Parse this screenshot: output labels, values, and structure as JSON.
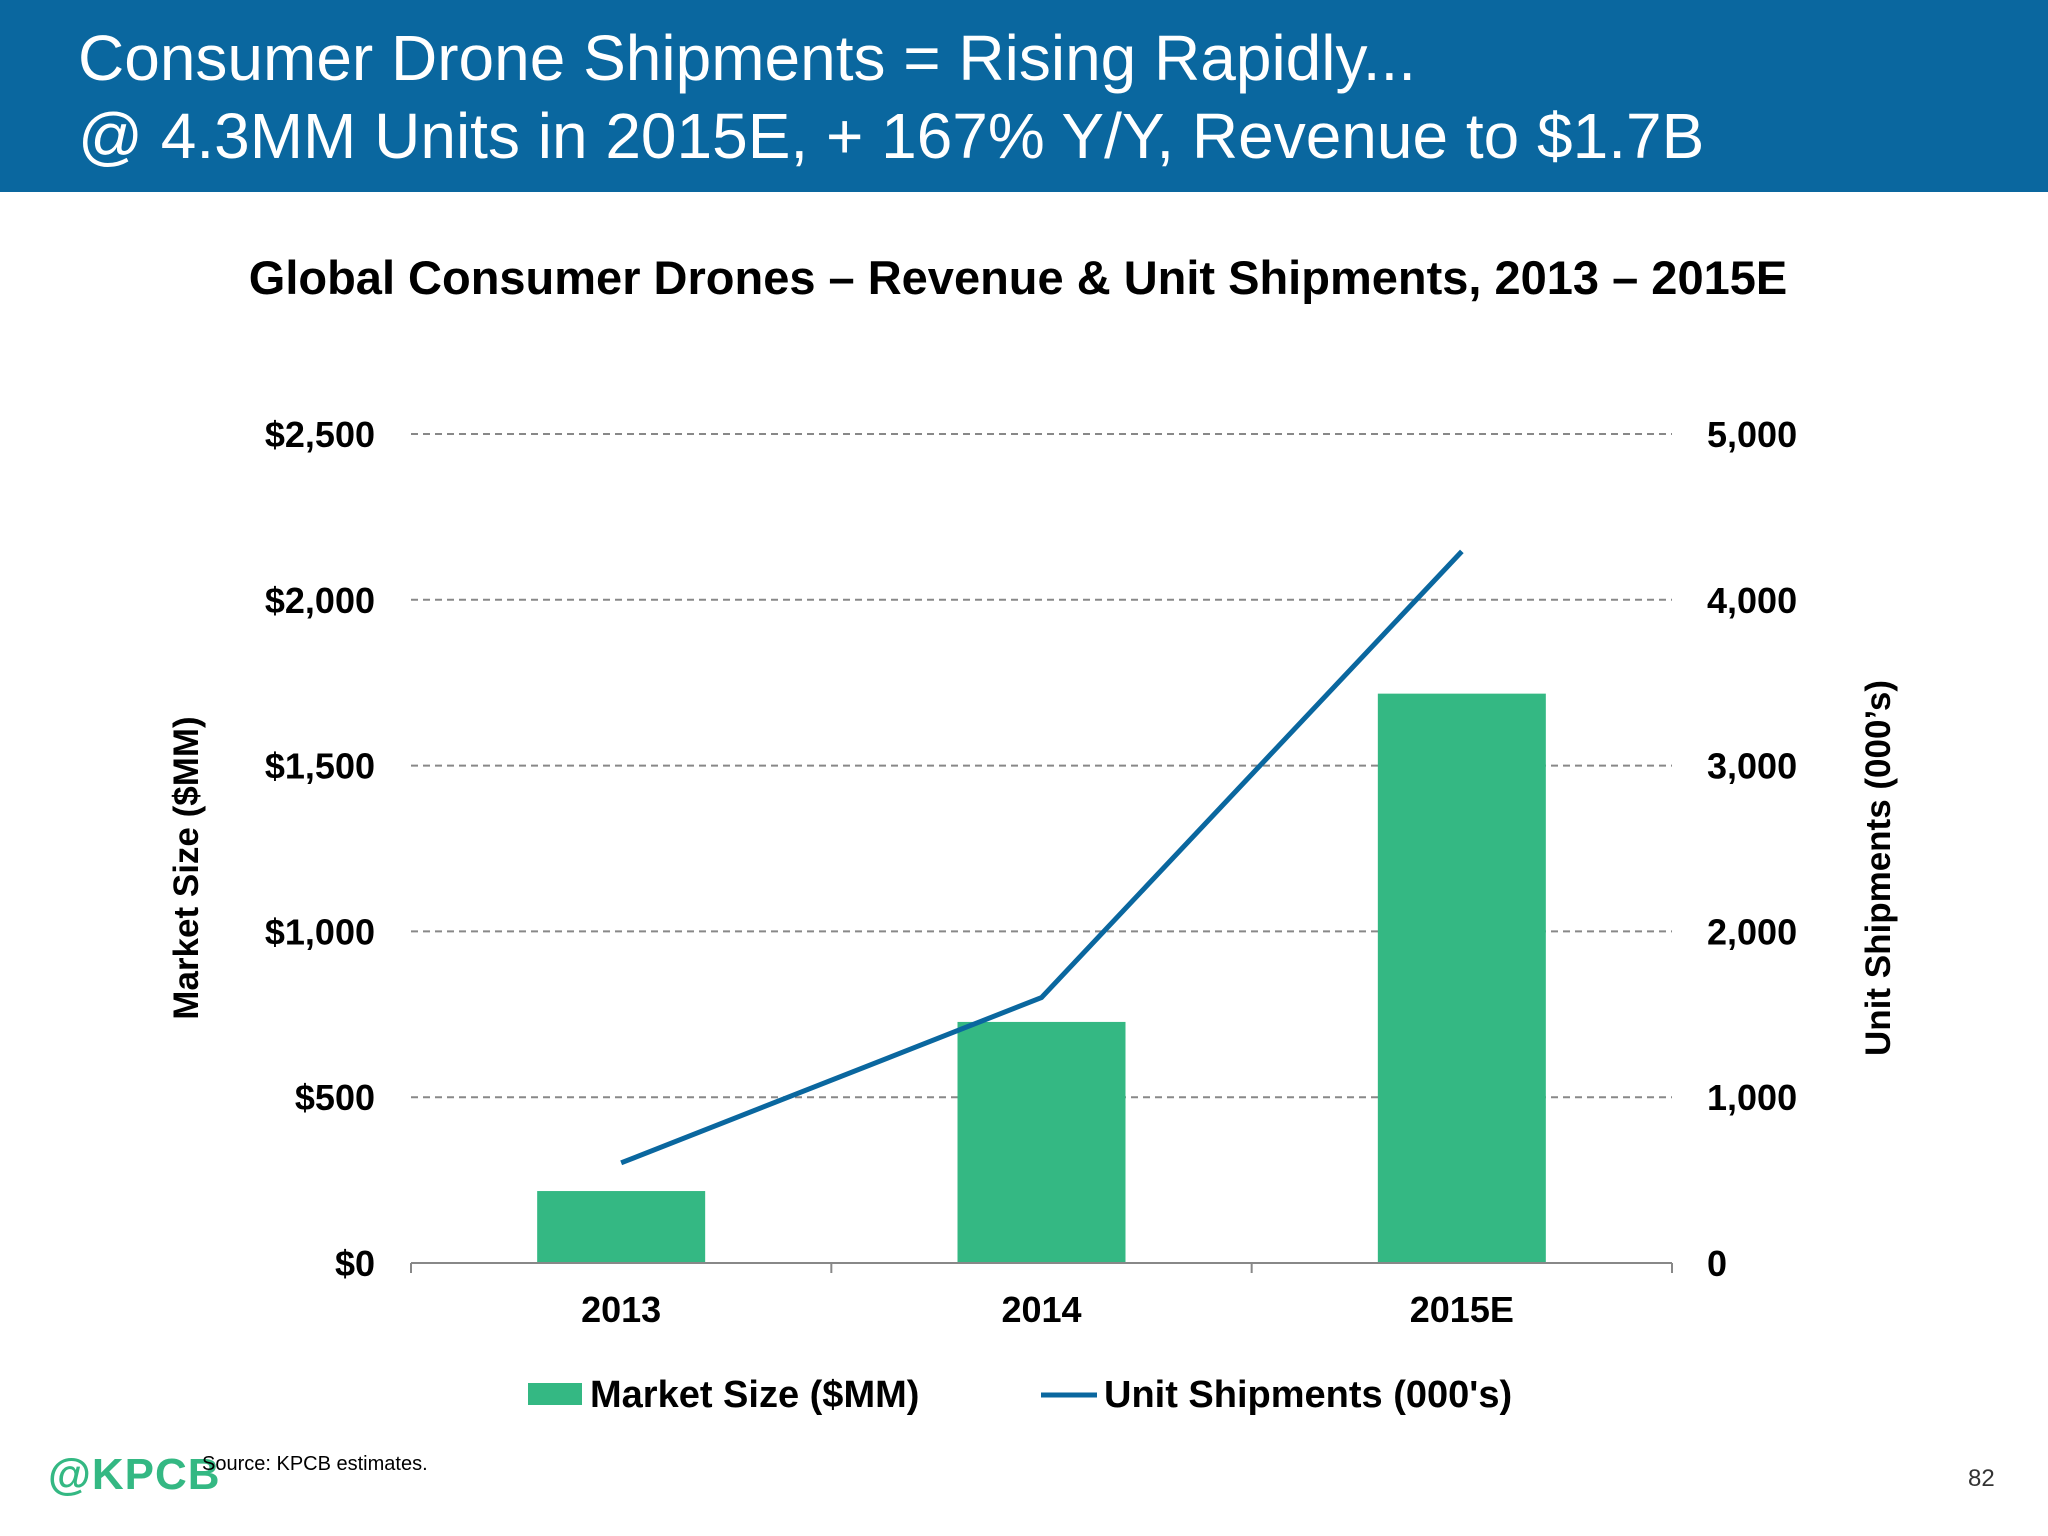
{
  "header": {
    "line1": "Consumer Drone Shipments = Rising Rapidly...",
    "line2": "@ 4.3MM Units in 2015E, + 167% Y/Y, Revenue to $1.7B",
    "background_color": "#0a679f"
  },
  "chart_data": {
    "type": "bar+line",
    "title": "Global Consumer Drones – Revenue & Unit Shipments, 2013 – 2015E",
    "categories": [
      "2013",
      "2014",
      "2015E"
    ],
    "series": [
      {
        "name": "Market Size ($MM)",
        "type": "bar",
        "axis": "left",
        "color": "#34b883",
        "values": [
          217,
          727,
          1717
        ]
      },
      {
        "name": "Unit Shipments (000's)",
        "type": "line",
        "axis": "right",
        "color": "#0a679f",
        "values": [
          604,
          1601,
          4292
        ]
      }
    ],
    "ylabel_left": "Market Size ($MM)",
    "ylabel_right": "Unit Shipments (000’s)",
    "ylim_left": [
      0,
      2500
    ],
    "ylim_right": [
      0,
      5000
    ],
    "yticks_left": [
      "$0",
      "$500",
      "$1,000",
      "$1,500",
      "$2,000",
      "$2,500"
    ],
    "yticks_right": [
      "0",
      "1,000",
      "2,000",
      "3,000",
      "4,000",
      "5,000"
    ],
    "grid": "horizontal dashed",
    "legend": "bottom"
  },
  "footer": {
    "source": "Source: KPCB estimates.",
    "logo": "@KPCB",
    "page_number": "82"
  }
}
